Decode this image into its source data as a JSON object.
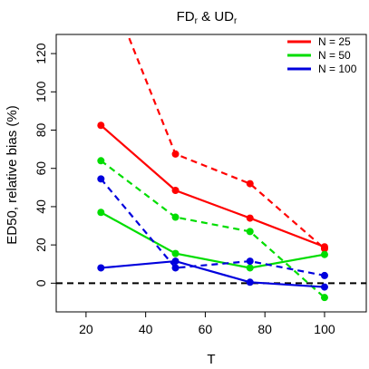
{
  "chart_data": {
    "type": "line",
    "title": "FD",
    "title_sub_left": "r",
    "title_join": " & ",
    "title_right": "UD",
    "title_sub_right": "r",
    "xlabel": "T",
    "ylabel": "ED50, relative bias (%)",
    "xlim": [
      10,
      114
    ],
    "ylim": [
      -15,
      130
    ],
    "xticks": [
      20,
      40,
      60,
      80,
      100
    ],
    "yticks": [
      0,
      20,
      40,
      60,
      80,
      100,
      120
    ],
    "xtick_labels": [
      "20",
      "40",
      "60",
      "80",
      "100"
    ],
    "ytick_labels": [
      "0",
      "20",
      "40",
      "60",
      "80",
      "100",
      "120"
    ],
    "reference_line": 0,
    "legend_position": "top-right",
    "legend": [
      "N = 25",
      "N = 50",
      "N = 100"
    ],
    "x": [
      25,
      50,
      75,
      100
    ],
    "series": [
      {
        "name": "N = 25",
        "method": "solid",
        "color": "#ff0000",
        "values": [
          82.5,
          48.5,
          34,
          19
        ]
      },
      {
        "name": "N = 25",
        "method": "dashed",
        "color": "#ff0000",
        "values": [
          165,
          67.5,
          52,
          18
        ],
        "show_points": [
          false,
          true,
          true,
          true
        ]
      },
      {
        "name": "N = 50",
        "method": "solid",
        "color": "#00dd00",
        "values": [
          37,
          15.5,
          8,
          15
        ]
      },
      {
        "name": "N = 50",
        "method": "dashed",
        "color": "#00dd00",
        "values": [
          64,
          34.5,
          27,
          -7.5
        ]
      },
      {
        "name": "N = 100",
        "method": "solid",
        "color": "#0000dd",
        "values": [
          8,
          11.5,
          0.5,
          -2
        ]
      },
      {
        "name": "N = 100",
        "method": "dashed",
        "color": "#0000dd",
        "values": [
          54.5,
          8,
          11.5,
          4
        ]
      }
    ]
  }
}
